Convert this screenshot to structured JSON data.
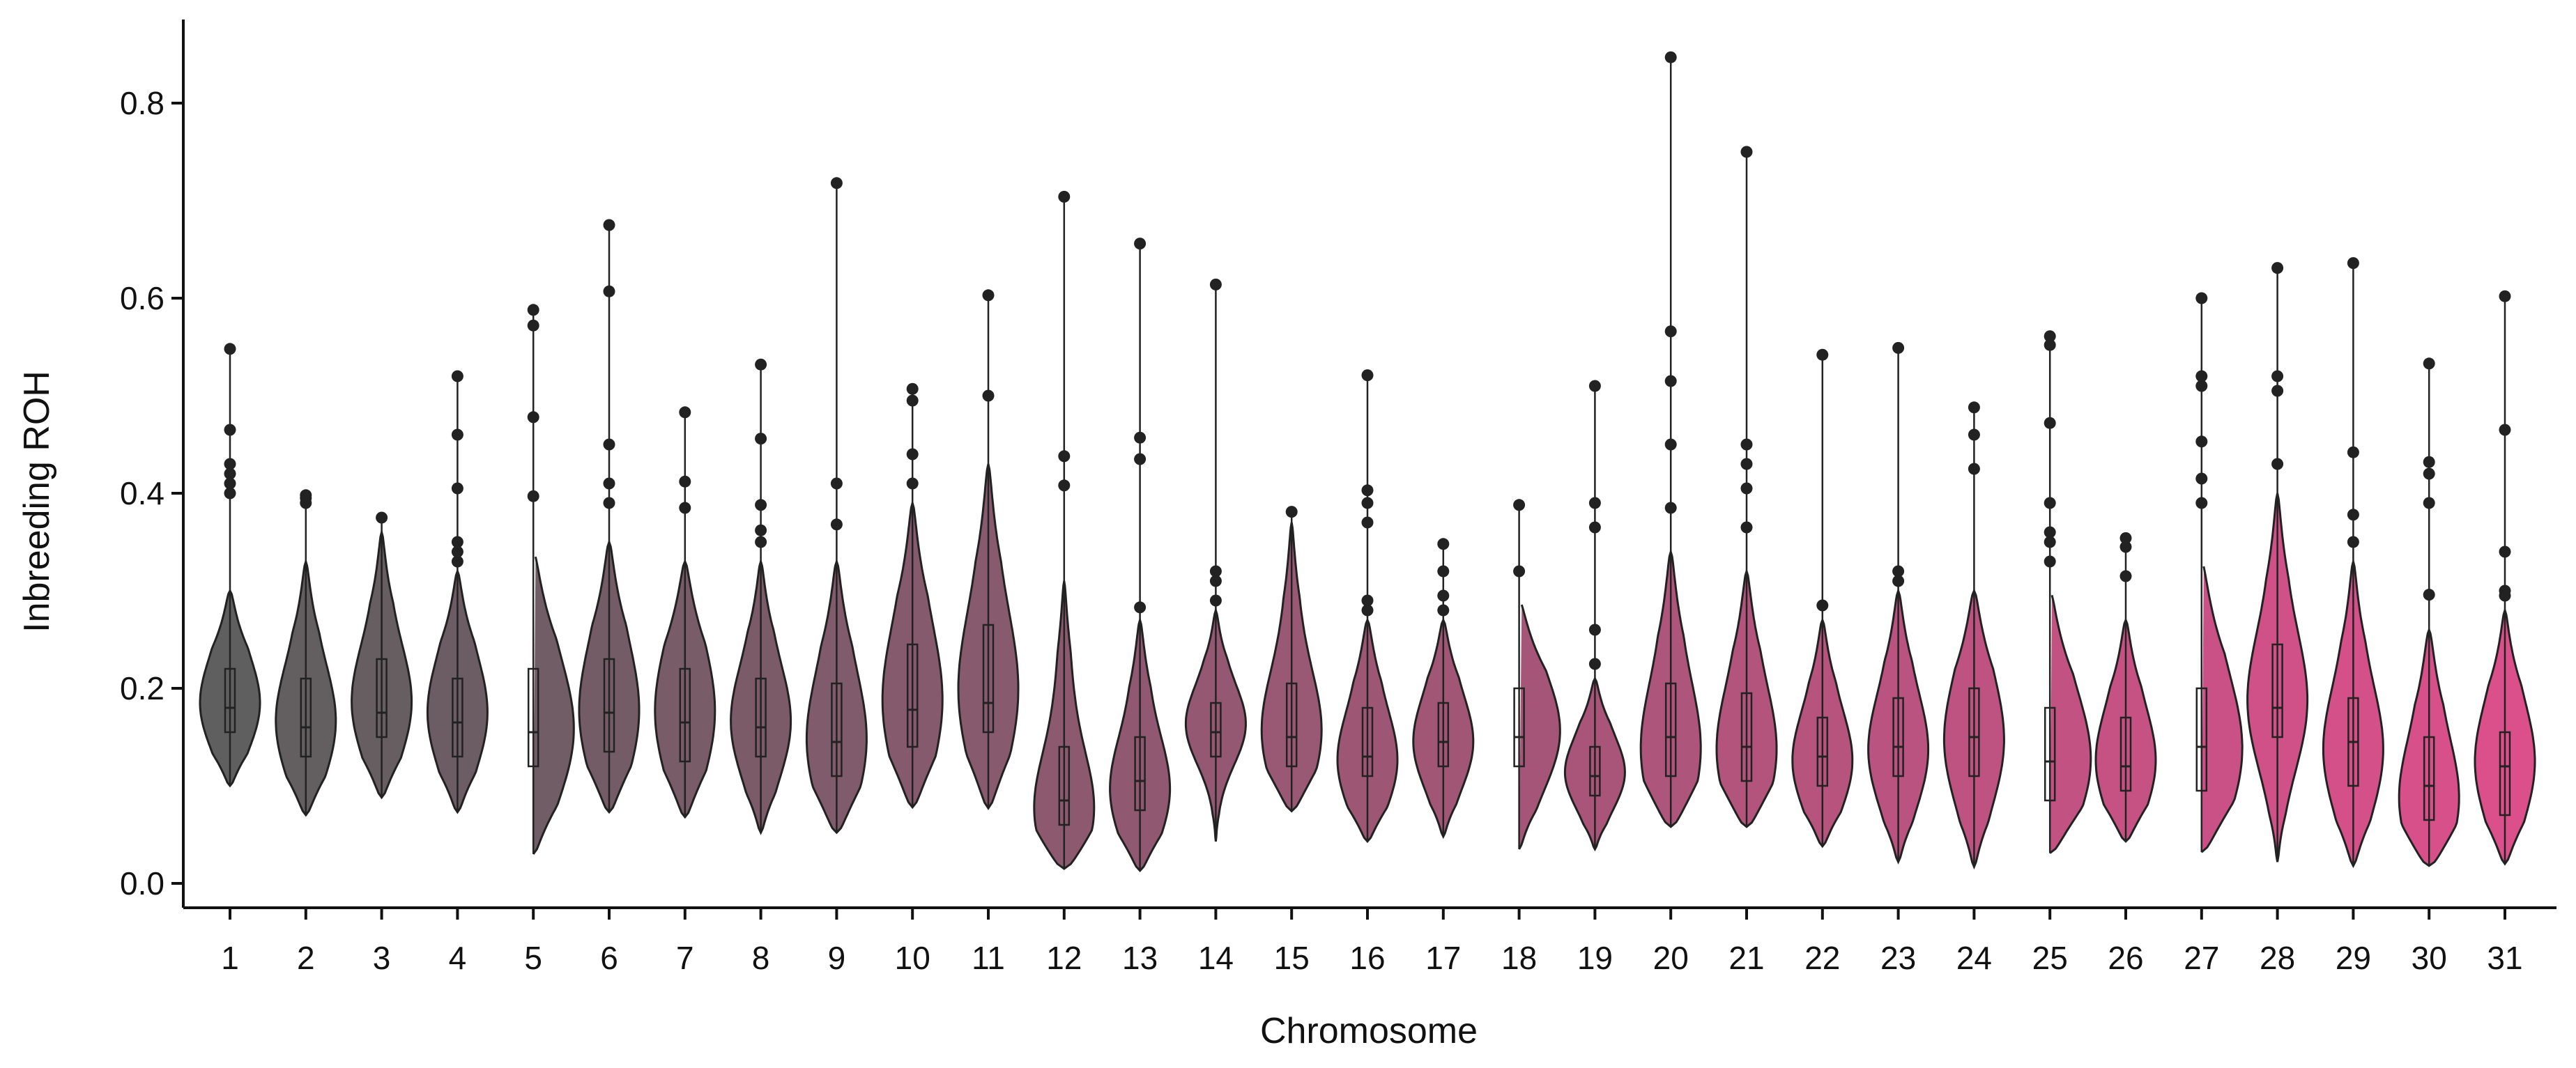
{
  "chart_data": {
    "type": "violin",
    "title": "",
    "xlabel": "Chromosome",
    "ylabel": "Inbreeding ROH",
    "ylim": [
      -0.025,
      0.89
    ],
    "yticks": [
      0.0,
      0.2,
      0.4,
      0.6,
      0.8
    ],
    "ytick_labels": [
      "0.0",
      "0.2",
      "0.4",
      "0.6",
      "0.8"
    ],
    "legend": "none",
    "grid": false,
    "color_gradient": [
      "#5f5f5f",
      "#db4f8b"
    ],
    "categories": [
      "1",
      "2",
      "3",
      "4",
      "5",
      "6",
      "7",
      "8",
      "9",
      "10",
      "11",
      "12",
      "13",
      "14",
      "15",
      "16",
      "17",
      "18",
      "19",
      "20",
      "21",
      "22",
      "23",
      "24",
      "25",
      "26",
      "27",
      "28",
      "29",
      "30",
      "31"
    ],
    "series": [
      {
        "chromosome": "1",
        "min": 0.1,
        "q1": 0.155,
        "median": 0.18,
        "q3": 0.22,
        "max": 0.548,
        "whisker_max": 0.3,
        "mode": 0.18,
        "outliers": [
          0.4,
          0.41,
          0.42,
          0.43,
          0.465,
          0.548
        ]
      },
      {
        "chromosome": "2",
        "min": 0.07,
        "q1": 0.13,
        "median": 0.16,
        "q3": 0.21,
        "max": 0.398,
        "whisker_max": 0.33,
        "mode": 0.16,
        "outliers": [
          0.39,
          0.395,
          0.398
        ]
      },
      {
        "chromosome": "3",
        "min": 0.088,
        "q1": 0.15,
        "median": 0.175,
        "q3": 0.23,
        "max": 0.375,
        "whisker_max": 0.36,
        "mode": 0.18,
        "outliers": [
          0.375
        ]
      },
      {
        "chromosome": "4",
        "min": 0.073,
        "q1": 0.13,
        "median": 0.165,
        "q3": 0.21,
        "max": 0.52,
        "whisker_max": 0.32,
        "mode": 0.17,
        "outliers": [
          0.33,
          0.34,
          0.35,
          0.405,
          0.46,
          0.52
        ]
      },
      {
        "chromosome": "5",
        "min": 0.03,
        "q1": 0.12,
        "median": 0.155,
        "q3": 0.22,
        "max": 0.59,
        "whisker_max": 0.34,
        "mode": 0.15,
        "outliers": [
          0.397,
          0.478,
          0.572,
          0.588
        ]
      },
      {
        "chromosome": "6",
        "min": 0.073,
        "q1": 0.135,
        "median": 0.175,
        "q3": 0.23,
        "max": 0.675,
        "whisker_max": 0.35,
        "mode": 0.17,
        "outliers": [
          0.39,
          0.41,
          0.45,
          0.607,
          0.675
        ]
      },
      {
        "chromosome": "7",
        "min": 0.068,
        "q1": 0.125,
        "median": 0.165,
        "q3": 0.22,
        "max": 0.483,
        "whisker_max": 0.33,
        "mode": 0.17,
        "outliers": [
          0.385,
          0.412,
          0.483
        ]
      },
      {
        "chromosome": "8",
        "min": 0.052,
        "q1": 0.13,
        "median": 0.16,
        "q3": 0.21,
        "max": 0.532,
        "whisker_max": 0.33,
        "mode": 0.16,
        "outliers": [
          0.35,
          0.362,
          0.388,
          0.456,
          0.532
        ]
      },
      {
        "chromosome": "9",
        "min": 0.052,
        "q1": 0.11,
        "median": 0.145,
        "q3": 0.205,
        "max": 0.718,
        "whisker_max": 0.33,
        "mode": 0.14,
        "outliers": [
          0.368,
          0.41,
          0.718
        ]
      },
      {
        "chromosome": "10",
        "min": 0.078,
        "q1": 0.14,
        "median": 0.178,
        "q3": 0.245,
        "max": 0.507,
        "whisker_max": 0.39,
        "mode": 0.18,
        "outliers": [
          0.41,
          0.44,
          0.495,
          0.507
        ]
      },
      {
        "chromosome": "11",
        "min": 0.077,
        "q1": 0.155,
        "median": 0.185,
        "q3": 0.265,
        "max": 0.603,
        "whisker_max": 0.43,
        "mode": 0.19,
        "outliers": [
          0.5,
          0.603
        ]
      },
      {
        "chromosome": "12",
        "min": 0.015,
        "q1": 0.06,
        "median": 0.085,
        "q3": 0.14,
        "max": 0.704,
        "whisker_max": 0.31,
        "mode": 0.07,
        "outliers": [
          0.408,
          0.438,
          0.704
        ]
      },
      {
        "chromosome": "13",
        "min": 0.013,
        "q1": 0.075,
        "median": 0.105,
        "q3": 0.15,
        "max": 0.656,
        "whisker_max": 0.27,
        "mode": 0.09,
        "outliers": [
          0.283,
          0.435,
          0.457,
          0.656
        ]
      },
      {
        "chromosome": "14",
        "min": 0.043,
        "q1": 0.13,
        "median": 0.155,
        "q3": 0.185,
        "max": 0.614,
        "whisker_max": 0.28,
        "mode": 0.16,
        "outliers": [
          0.29,
          0.31,
          0.32,
          0.614
        ]
      },
      {
        "chromosome": "15",
        "min": 0.074,
        "q1": 0.12,
        "median": 0.15,
        "q3": 0.205,
        "max": 0.381,
        "whisker_max": 0.37,
        "mode": 0.15,
        "outliers": [
          0.381
        ]
      },
      {
        "chromosome": "16",
        "min": 0.043,
        "q1": 0.11,
        "median": 0.13,
        "q3": 0.18,
        "max": 0.521,
        "whisker_max": 0.27,
        "mode": 0.12,
        "outliers": [
          0.28,
          0.29,
          0.37,
          0.39,
          0.403,
          0.521
        ]
      },
      {
        "chromosome": "17",
        "min": 0.048,
        "q1": 0.12,
        "median": 0.145,
        "q3": 0.185,
        "max": 0.348,
        "whisker_max": 0.27,
        "mode": 0.14,
        "outliers": [
          0.28,
          0.295,
          0.32,
          0.348
        ]
      },
      {
        "chromosome": "18",
        "min": 0.035,
        "q1": 0.12,
        "median": 0.15,
        "q3": 0.2,
        "max": 0.388,
        "whisker_max": 0.29,
        "mode": 0.15,
        "outliers": [
          0.32,
          0.388
        ]
      },
      {
        "chromosome": "19",
        "min": 0.035,
        "q1": 0.09,
        "median": 0.11,
        "q3": 0.14,
        "max": 0.51,
        "whisker_max": 0.21,
        "mode": 0.11,
        "outliers": [
          0.225,
          0.26,
          0.365,
          0.39,
          0.51
        ]
      },
      {
        "chromosome": "20",
        "min": 0.058,
        "q1": 0.11,
        "median": 0.15,
        "q3": 0.205,
        "max": 0.847,
        "whisker_max": 0.34,
        "mode": 0.13,
        "outliers": [
          0.385,
          0.45,
          0.515,
          0.566,
          0.847
        ]
      },
      {
        "chromosome": "21",
        "min": 0.058,
        "q1": 0.105,
        "median": 0.14,
        "q3": 0.195,
        "max": 0.75,
        "whisker_max": 0.32,
        "mode": 0.13,
        "outliers": [
          0.365,
          0.405,
          0.43,
          0.45,
          0.75
        ]
      },
      {
        "chromosome": "22",
        "min": 0.038,
        "q1": 0.1,
        "median": 0.13,
        "q3": 0.17,
        "max": 0.542,
        "whisker_max": 0.27,
        "mode": 0.12,
        "outliers": [
          0.285,
          0.542
        ]
      },
      {
        "chromosome": "23",
        "min": 0.022,
        "q1": 0.11,
        "median": 0.14,
        "q3": 0.19,
        "max": 0.549,
        "whisker_max": 0.3,
        "mode": 0.13,
        "outliers": [
          0.31,
          0.32,
          0.549
        ]
      },
      {
        "chromosome": "24",
        "min": 0.017,
        "q1": 0.11,
        "median": 0.15,
        "q3": 0.2,
        "max": 0.488,
        "whisker_max": 0.3,
        "mode": 0.14,
        "outliers": [
          0.425,
          0.46,
          0.488
        ]
      },
      {
        "chromosome": "25",
        "min": 0.031,
        "q1": 0.085,
        "median": 0.125,
        "q3": 0.18,
        "max": 0.561,
        "whisker_max": 0.3,
        "mode": 0.12,
        "outliers": [
          0.33,
          0.35,
          0.36,
          0.39,
          0.472,
          0.552,
          0.561
        ]
      },
      {
        "chromosome": "26",
        "min": 0.043,
        "q1": 0.095,
        "median": 0.12,
        "q3": 0.17,
        "max": 0.354,
        "whisker_max": 0.27,
        "mode": 0.12,
        "outliers": [
          0.315,
          0.345,
          0.354
        ]
      },
      {
        "chromosome": "27",
        "min": 0.032,
        "q1": 0.095,
        "median": 0.14,
        "q3": 0.2,
        "max": 0.6,
        "whisker_max": 0.33,
        "mode": 0.13,
        "outliers": [
          0.39,
          0.415,
          0.453,
          0.51,
          0.52,
          0.6
        ]
      },
      {
        "chromosome": "28",
        "min": 0.022,
        "q1": 0.15,
        "median": 0.18,
        "q3": 0.245,
        "max": 0.631,
        "whisker_max": 0.4,
        "mode": 0.18,
        "outliers": [
          0.43,
          0.505,
          0.52,
          0.631
        ]
      },
      {
        "chromosome": "29",
        "min": 0.018,
        "q1": 0.1,
        "median": 0.145,
        "q3": 0.19,
        "max": 0.636,
        "whisker_max": 0.33,
        "mode": 0.13,
        "outliers": [
          0.35,
          0.378,
          0.442,
          0.636
        ]
      },
      {
        "chromosome": "30",
        "min": 0.018,
        "q1": 0.065,
        "median": 0.1,
        "q3": 0.15,
        "max": 0.533,
        "whisker_max": 0.26,
        "mode": 0.08,
        "outliers": [
          0.296,
          0.39,
          0.42,
          0.432,
          0.533
        ]
      },
      {
        "chromosome": "31",
        "min": 0.02,
        "q1": 0.07,
        "median": 0.12,
        "q3": 0.155,
        "max": 0.602,
        "whisker_max": 0.28,
        "mode": 0.12,
        "outliers": [
          0.295,
          0.3,
          0.34,
          0.465,
          0.602
        ]
      }
    ]
  }
}
